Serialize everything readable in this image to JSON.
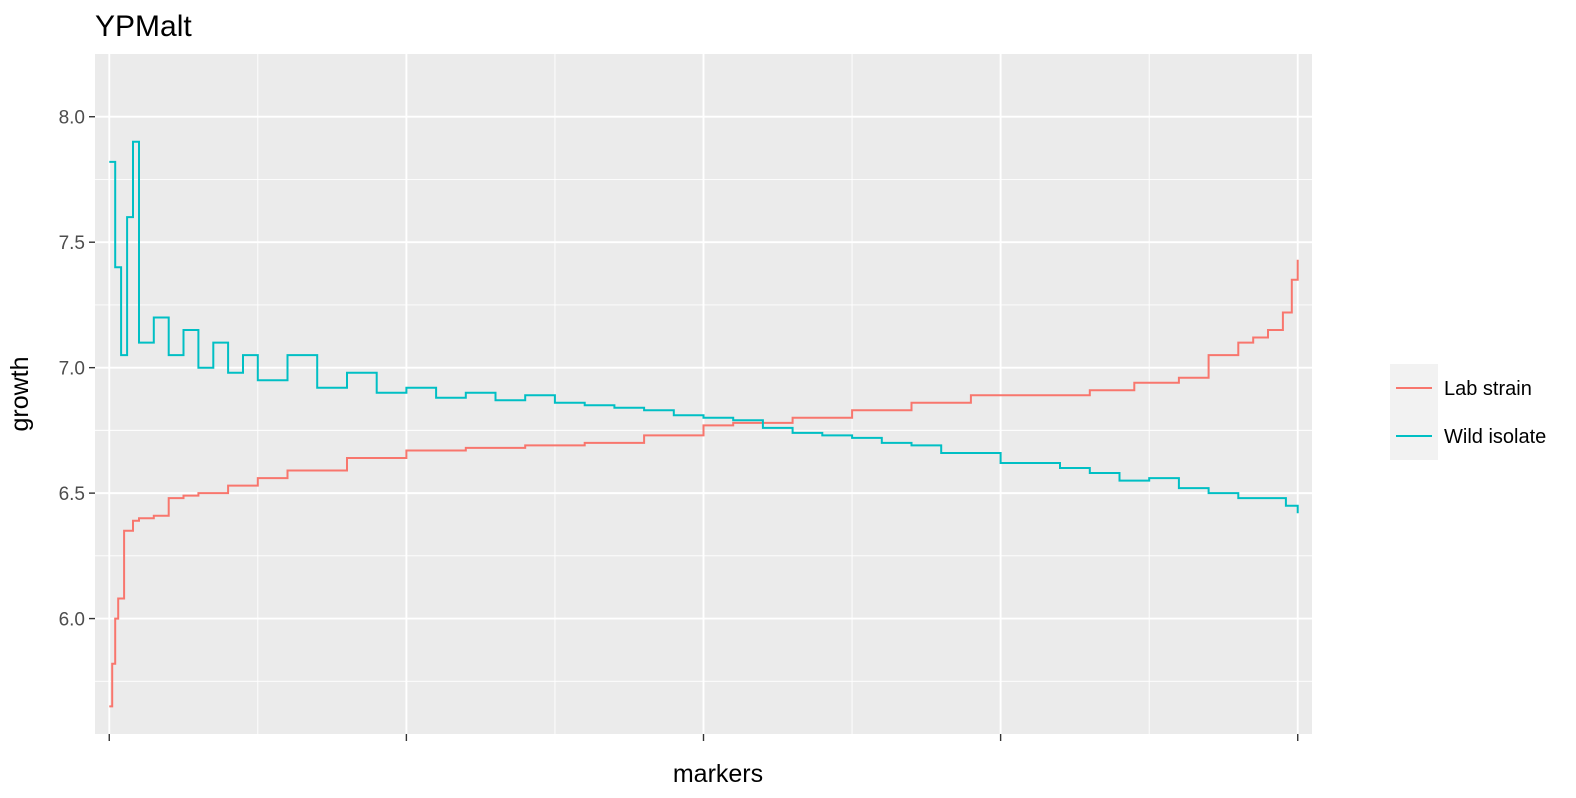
{
  "chart_data": {
    "type": "line",
    "title": "YPMalt",
    "xlabel": "markers",
    "ylabel": "growth",
    "x_tick_labels": [
      "",
      "",
      "",
      "",
      ""
    ],
    "y_ticks": [
      6.0,
      6.5,
      7.0,
      7.5,
      8.0
    ],
    "y_tick_labels": [
      "6.0",
      "6.5",
      "7.0",
      "7.5",
      "8.0"
    ],
    "xlim": [
      -0.048,
      4.048
    ],
    "ylim": [
      5.54,
      8.25
    ],
    "x_ticks": [
      0,
      1,
      2,
      3,
      4
    ],
    "grid": true,
    "legend_position": "right",
    "background": "#EBEBEB",
    "series": [
      {
        "name": "Lab strain",
        "color": "#F8766D",
        "x": [
          0.0,
          0.01,
          0.02,
          0.03,
          0.05,
          0.08,
          0.1,
          0.15,
          0.2,
          0.25,
          0.3,
          0.4,
          0.5,
          0.6,
          0.8,
          1.0,
          1.2,
          1.4,
          1.6,
          1.8,
          2.0,
          2.1,
          2.3,
          2.5,
          2.7,
          2.9,
          3.1,
          3.3,
          3.45,
          3.6,
          3.7,
          3.8,
          3.85,
          3.9,
          3.95,
          3.98,
          4.0
        ],
        "y": [
          5.65,
          5.82,
          6.0,
          6.08,
          6.35,
          6.39,
          6.4,
          6.41,
          6.48,
          6.49,
          6.5,
          6.53,
          6.56,
          6.59,
          6.64,
          6.67,
          6.68,
          6.69,
          6.7,
          6.73,
          6.77,
          6.78,
          6.8,
          6.83,
          6.86,
          6.89,
          6.89,
          6.91,
          6.94,
          6.96,
          7.05,
          7.1,
          7.12,
          7.15,
          7.22,
          7.35,
          7.43
        ]
      },
      {
        "name": "Wild isolate",
        "color": "#00BFC4",
        "x": [
          0.0,
          0.02,
          0.04,
          0.06,
          0.08,
          0.1,
          0.15,
          0.2,
          0.25,
          0.3,
          0.35,
          0.4,
          0.45,
          0.5,
          0.6,
          0.7,
          0.8,
          0.9,
          1.0,
          1.1,
          1.2,
          1.3,
          1.4,
          1.5,
          1.6,
          1.7,
          1.8,
          1.9,
          2.0,
          2.1,
          2.2,
          2.3,
          2.4,
          2.5,
          2.6,
          2.7,
          2.8,
          2.9,
          3.0,
          3.1,
          3.2,
          3.3,
          3.4,
          3.5,
          3.6,
          3.7,
          3.8,
          3.9,
          3.96,
          4.0
        ],
        "y": [
          7.82,
          7.4,
          7.05,
          7.6,
          7.9,
          7.1,
          7.2,
          7.05,
          7.15,
          7.0,
          7.1,
          6.98,
          7.05,
          6.95,
          7.05,
          6.92,
          6.98,
          6.9,
          6.92,
          6.88,
          6.9,
          6.87,
          6.89,
          6.86,
          6.85,
          6.84,
          6.83,
          6.81,
          6.8,
          6.79,
          6.76,
          6.74,
          6.73,
          6.72,
          6.7,
          6.69,
          6.66,
          6.66,
          6.62,
          6.62,
          6.6,
          6.58,
          6.55,
          6.56,
          6.52,
          6.5,
          6.48,
          6.48,
          6.45,
          6.42
        ]
      }
    ]
  }
}
